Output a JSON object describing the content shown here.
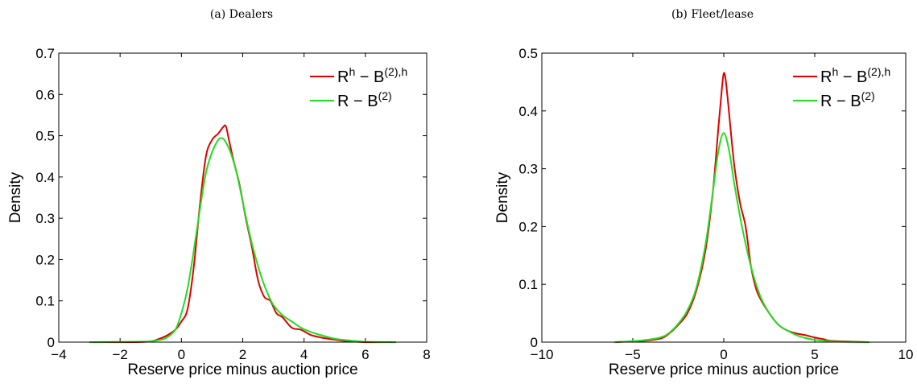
{
  "chart_data": [
    {
      "type": "line",
      "title": "(a) Dealers",
      "xlabel": "Reserve price minus auction price",
      "ylabel": "Density",
      "xlim": [
        -4,
        8
      ],
      "ylim": [
        0,
        0.7
      ],
      "xticks": [
        "−4",
        "−2",
        "0",
        "2",
        "4",
        "6",
        "8"
      ],
      "yticks": [
        "0",
        "0.1",
        "0.2",
        "0.3",
        "0.4",
        "0.5",
        "0.6",
        "0.7"
      ],
      "legend_position": "top-right",
      "series": [
        {
          "name": "R^h − B^(2),h",
          "legend_main": "R",
          "legend_sup1": "h",
          "legend_mid": " − B",
          "legend_sup2": "(2),h",
          "color": "#e00000",
          "x": [
            -3.0,
            -1.5,
            -1.0,
            -0.8,
            -0.5,
            -0.2,
            0.0,
            0.2,
            0.4,
            0.6,
            0.8,
            1.0,
            1.2,
            1.35,
            1.45,
            1.55,
            1.7,
            1.9,
            2.1,
            2.3,
            2.5,
            2.7,
            2.9,
            3.1,
            3.3,
            3.6,
            3.9,
            4.2,
            4.5,
            4.8,
            5.0,
            5.2,
            5.5,
            6.0,
            7.0
          ],
          "y": [
            0.0,
            0.0,
            0.002,
            0.006,
            0.015,
            0.03,
            0.05,
            0.08,
            0.18,
            0.33,
            0.45,
            0.49,
            0.505,
            0.52,
            0.523,
            0.49,
            0.44,
            0.38,
            0.3,
            0.23,
            0.15,
            0.11,
            0.1,
            0.07,
            0.06,
            0.035,
            0.03,
            0.018,
            0.012,
            0.008,
            0.006,
            0.004,
            0.002,
            0.0,
            0.0
          ]
        },
        {
          "name": "R − B^(2)",
          "legend_main": "R − B",
          "legend_sup1": "(2)",
          "legend_mid": "",
          "legend_sup2": "",
          "color": "#22dd22",
          "x": [
            -3.0,
            -1.5,
            -1.0,
            -0.8,
            -0.5,
            -0.2,
            0.0,
            0.2,
            0.4,
            0.6,
            0.8,
            1.0,
            1.2,
            1.3,
            1.4,
            1.6,
            1.8,
            2.0,
            2.2,
            2.4,
            2.6,
            2.8,
            3.0,
            3.3,
            3.6,
            3.9,
            4.2,
            4.5,
            4.8,
            5.1,
            5.5,
            6.0,
            7.0
          ],
          "y": [
            0.0,
            0.001,
            0.002,
            0.004,
            0.01,
            0.03,
            0.07,
            0.13,
            0.22,
            0.32,
            0.41,
            0.46,
            0.49,
            0.494,
            0.49,
            0.46,
            0.41,
            0.34,
            0.27,
            0.21,
            0.16,
            0.12,
            0.09,
            0.065,
            0.05,
            0.035,
            0.025,
            0.018,
            0.012,
            0.007,
            0.004,
            0.001,
            0.0
          ]
        }
      ]
    },
    {
      "type": "line",
      "title": "(b) Fleet/lease",
      "xlabel": "Reserve price minus auction price",
      "ylabel": "Density",
      "xlim": [
        -10,
        10
      ],
      "ylim": [
        0,
        0.5
      ],
      "xticks": [
        "−10",
        "−5",
        "0",
        "5",
        "10"
      ],
      "yticks": [
        "0",
        "0.1",
        "0.2",
        "0.3",
        "0.4",
        "0.5"
      ],
      "legend_position": "top-right",
      "series": [
        {
          "name": "R^h − B^(2),h",
          "legend_main": "R",
          "legend_sup1": "h",
          "legend_mid": " − B",
          "legend_sup2": "(2),h",
          "color": "#e00000",
          "x": [
            -6.0,
            -4.5,
            -3.5,
            -3.0,
            -2.5,
            -2.0,
            -1.5,
            -1.0,
            -0.6,
            -0.3,
            -0.1,
            0.0,
            0.1,
            0.25,
            0.4,
            0.6,
            0.9,
            1.2,
            1.5,
            1.8,
            2.1,
            2.5,
            3.0,
            3.5,
            4.0,
            4.5,
            5.0,
            5.5,
            6.0,
            8.0
          ],
          "y": [
            0.0,
            0.002,
            0.006,
            0.015,
            0.03,
            0.05,
            0.09,
            0.16,
            0.26,
            0.37,
            0.44,
            0.465,
            0.455,
            0.41,
            0.36,
            0.3,
            0.24,
            0.2,
            0.13,
            0.09,
            0.07,
            0.05,
            0.03,
            0.02,
            0.015,
            0.012,
            0.008,
            0.005,
            0.002,
            0.0
          ]
        },
        {
          "name": "R − B^(2)",
          "legend_main": "R − B",
          "legend_sup1": "(2)",
          "legend_mid": "",
          "legend_sup2": "",
          "color": "#22dd22",
          "x": [
            -6.0,
            -4.5,
            -3.5,
            -3.0,
            -2.5,
            -2.0,
            -1.5,
            -1.0,
            -0.6,
            -0.3,
            0.0,
            0.3,
            0.6,
            1.0,
            1.5,
            2.0,
            2.5,
            3.0,
            3.5,
            4.0,
            4.5,
            5.0,
            6.0,
            8.0
          ],
          "y": [
            0.0,
            0.003,
            0.008,
            0.016,
            0.032,
            0.055,
            0.095,
            0.17,
            0.26,
            0.33,
            0.362,
            0.33,
            0.27,
            0.2,
            0.13,
            0.08,
            0.05,
            0.03,
            0.02,
            0.012,
            0.007,
            0.004,
            0.001,
            0.0
          ]
        }
      ]
    }
  ]
}
